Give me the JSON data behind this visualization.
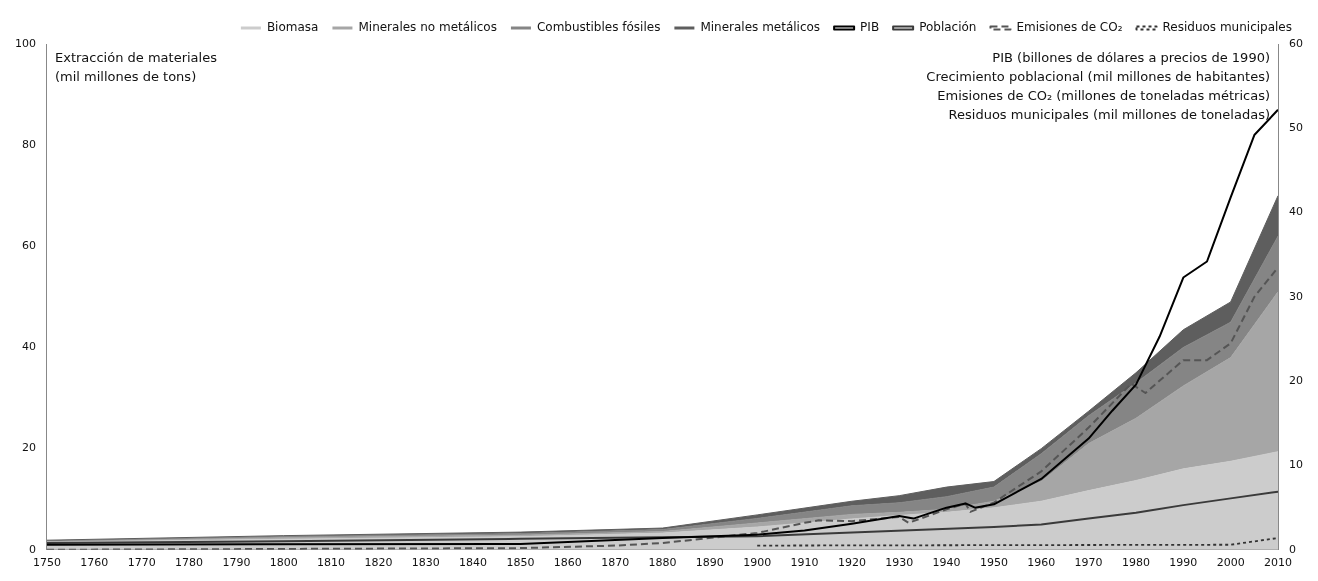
{
  "chart_data": {
    "type": "area",
    "stacked": true,
    "legend": "top",
    "grid": false,
    "ylabel": "Extracción de materiales\n(mil millones de tons)",
    "y2label": "PIB (billones de dólares a precios de 1990)\nCrecimiento poblacional (mil millones de habitantes)\nEmisiones de CO₂ (millones de toneladas métricas)\nResiduos municipales (mil millones de toneladas)",
    "x": [
      1750,
      1800,
      1850,
      1880,
      1900,
      1920,
      1930,
      1940,
      1950,
      1960,
      1970,
      1980,
      1990,
      2000,
      2010
    ],
    "xlim": [
      1750,
      2010
    ],
    "xticks": [
      1750,
      1760,
      1770,
      1780,
      1790,
      1800,
      1810,
      1820,
      1830,
      1840,
      1850,
      1860,
      1870,
      1880,
      1890,
      1900,
      1910,
      1920,
      1930,
      1940,
      1950,
      1960,
      1970,
      1980,
      1990,
      2000,
      2010
    ],
    "ylim": [
      0,
      100
    ],
    "yticks": [
      0,
      20,
      40,
      60,
      80,
      100
    ],
    "y2lim": [
      0,
      60
    ],
    "y2ticks": [
      0,
      10,
      20,
      30,
      40,
      50,
      60
    ],
    "series": [
      {
        "name": "Biomasa",
        "type": "area",
        "color": "#cccccc",
        "values": [
          1.5,
          2.1,
          2.6,
          3.3,
          4.5,
          6.1,
          6.8,
          7.4,
          8.3,
          9.6,
          11.7,
          13.7,
          16,
          17.5,
          19.4
        ]
      },
      {
        "name": "Minerales no metálicos",
        "type": "area",
        "color": "#a6a6a6",
        "values": [
          0.1,
          0.3,
          0.3,
          0.3,
          0.8,
          0.9,
          0.6,
          0.6,
          1.3,
          3.9,
          9.3,
          12.3,
          16.4,
          20.5,
          31.6
        ]
      },
      {
        "name": "Combustibles fósiles",
        "type": "area",
        "color": "#858585",
        "values": [
          0.1,
          0.2,
          0.3,
          0.4,
          0.9,
          1.7,
          1.9,
          2.5,
          2.8,
          5.5,
          5.5,
          7,
          7.6,
          7,
          11
        ]
      },
      {
        "name": "Minerales metálicos",
        "type": "area",
        "color": "#5e5e5e",
        "values": [
          0.2,
          0.2,
          0.3,
          0.3,
          0.7,
          0.9,
          1.4,
          1.9,
          1.1,
          1,
          0.9,
          2,
          3.5,
          4,
          8
        ]
      },
      {
        "name": "PIB",
        "type": "line",
        "axis": "y2",
        "color": "#000000",
        "line_style": "solid",
        "x": [
          1750,
          1850,
          1880,
          1900,
          1910,
          1920,
          1930,
          1933,
          1940,
          1944,
          1946,
          1950,
          1960,
          1970,
          1975,
          1980,
          1985,
          1990,
          1995,
          2000,
          2005,
          2010
        ],
        "values": [
          0.6,
          0.7,
          1.4,
          1.8,
          2.3,
          3.1,
          4.0,
          3.7,
          5.0,
          5.5,
          5.0,
          5.4,
          8.4,
          13.2,
          16.5,
          19.6,
          25.3,
          32.3,
          34.2,
          41.8,
          49.2,
          52.2
        ]
      },
      {
        "name": "Población",
        "type": "line",
        "axis": "y2",
        "color": "#3a3a3a",
        "line_style": "solid",
        "x": [
          1750,
          1800,
          1850,
          1900,
          1950,
          1960,
          1970,
          1980,
          1990,
          2000,
          2010
        ],
        "values": [
          0.8,
          1.0,
          1.3,
          1.6,
          2.7,
          3.0,
          3.7,
          4.4,
          5.3,
          6.1,
          6.9
        ]
      },
      {
        "name": "Emisiones de CO₂",
        "type": "line",
        "axis": "y2",
        "color": "#555555",
        "line_style": "dashed",
        "x": [
          1750,
          1850,
          1870,
          1880,
          1900,
          1910,
          1913,
          1920,
          1930,
          1932,
          1940,
          1944,
          1945,
          1950,
          1960,
          1970,
          1979,
          1982,
          1990,
          1995,
          2000,
          2005,
          2010
        ],
        "values": [
          0,
          0.2,
          0.5,
          0.8,
          2.0,
          3.2,
          3.5,
          3.4,
          3.9,
          3.2,
          4.8,
          5.5,
          4.5,
          5.6,
          9.3,
          14.5,
          19.7,
          18.6,
          22.5,
          22.5,
          24.5,
          30,
          33.5
        ]
      },
      {
        "name": "Residuos municipales",
        "type": "line",
        "axis": "y2",
        "color": "#333333",
        "line_style": "dotted",
        "x": [
          1900,
          2000,
          2005,
          2010
        ],
        "values": [
          0.5,
          0.6,
          1.0,
          1.4
        ]
      }
    ]
  }
}
